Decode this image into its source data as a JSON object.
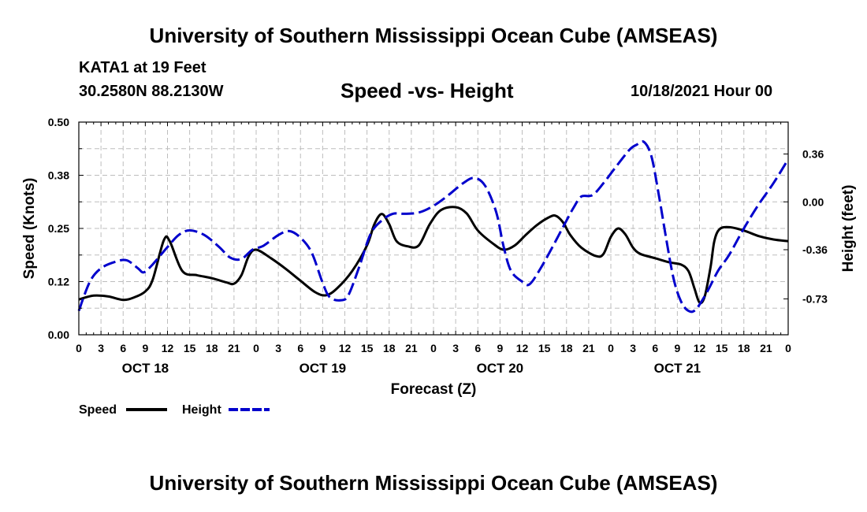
{
  "header": {
    "title": "University of Southern Mississippi Ocean Cube (AMSEAS)",
    "station": "KATA1 at 19 Feet",
    "coords": "30.2580N  88.2130W",
    "subtitle": "Speed -vs- Height",
    "datestamp": "10/18/2021 Hour 00"
  },
  "footer": {
    "title": "University of Southern Mississippi Ocean Cube (AMSEAS)"
  },
  "chart_data": {
    "type": "line",
    "title": "Speed -vs- Height",
    "xlabel": "Forecast (Z)",
    "ylabel_left": "Speed (Knots)",
    "ylabel_right": "Height (feet)",
    "x_range_hours": [
      0,
      96
    ],
    "x_ticks": [
      {
        "hour": 0,
        "label": "0"
      },
      {
        "hour": 3,
        "label": "3"
      },
      {
        "hour": 6,
        "label": "6"
      },
      {
        "hour": 9,
        "label": "9"
      },
      {
        "hour": 12,
        "label": "12"
      },
      {
        "hour": 15,
        "label": "15"
      },
      {
        "hour": 18,
        "label": "18"
      },
      {
        "hour": 21,
        "label": "21"
      },
      {
        "hour": 24,
        "label": "0"
      },
      {
        "hour": 27,
        "label": "3"
      },
      {
        "hour": 30,
        "label": "6"
      },
      {
        "hour": 33,
        "label": "9"
      },
      {
        "hour": 36,
        "label": "12"
      },
      {
        "hour": 39,
        "label": "15"
      },
      {
        "hour": 42,
        "label": "18"
      },
      {
        "hour": 45,
        "label": "21"
      },
      {
        "hour": 48,
        "label": "0"
      },
      {
        "hour": 51,
        "label": "3"
      },
      {
        "hour": 54,
        "label": "6"
      },
      {
        "hour": 57,
        "label": "9"
      },
      {
        "hour": 60,
        "label": "12"
      },
      {
        "hour": 63,
        "label": "15"
      },
      {
        "hour": 66,
        "label": "18"
      },
      {
        "hour": 69,
        "label": "21"
      },
      {
        "hour": 72,
        "label": "0"
      },
      {
        "hour": 75,
        "label": "3"
      },
      {
        "hour": 78,
        "label": "6"
      },
      {
        "hour": 81,
        "label": "9"
      },
      {
        "hour": 84,
        "label": "12"
      },
      {
        "hour": 87,
        "label": "15"
      },
      {
        "hour": 90,
        "label": "18"
      },
      {
        "hour": 93,
        "label": "21"
      },
      {
        "hour": 96,
        "label": "0"
      }
    ],
    "day_labels": [
      {
        "hour": 9,
        "label": "OCT 18"
      },
      {
        "hour": 33,
        "label": "OCT 19"
      },
      {
        "hour": 57,
        "label": "OCT 20"
      },
      {
        "hour": 81,
        "label": "OCT 21"
      }
    ],
    "left_axis": {
      "range": [
        0,
        0.5
      ],
      "ticks": [
        {
          "value": 0,
          "label": "0.00"
        },
        {
          "value": 0.125,
          "label": "0.12"
        },
        {
          "value": 0.25,
          "label": "0.25"
        },
        {
          "value": 0.375,
          "label": "0.38"
        },
        {
          "value": 0.5,
          "label": "0.50"
        }
      ]
    },
    "right_axis": {
      "range": [
        -1.0,
        0.6
      ],
      "ticks": [
        {
          "value": -0.73,
          "label": "-0.73"
        },
        {
          "value": -0.36,
          "label": "-0.36"
        },
        {
          "value": 0.0,
          "label": "0.00"
        },
        {
          "value": 0.36,
          "label": "0.36"
        }
      ]
    },
    "series": [
      {
        "name": "Speed",
        "axis": "left",
        "color": "#000000",
        "style": "solid",
        "points": [
          [
            0,
            0.083
          ],
          [
            2,
            0.092
          ],
          [
            4,
            0.09
          ],
          [
            6,
            0.082
          ],
          [
            7.5,
            0.088
          ],
          [
            9,
            0.102
          ],
          [
            10,
            0.13
          ],
          [
            11.5,
            0.222
          ],
          [
            12.3,
            0.22
          ],
          [
            14,
            0.15
          ],
          [
            16,
            0.14
          ],
          [
            18,
            0.133
          ],
          [
            20,
            0.123
          ],
          [
            21,
            0.12
          ],
          [
            22,
            0.14
          ],
          [
            23,
            0.185
          ],
          [
            24,
            0.2
          ],
          [
            26,
            0.18
          ],
          [
            28,
            0.155
          ],
          [
            30,
            0.127
          ],
          [
            32,
            0.1
          ],
          [
            33.5,
            0.093
          ],
          [
            35,
            0.11
          ],
          [
            37,
            0.15
          ],
          [
            39,
            0.21
          ],
          [
            40,
            0.26
          ],
          [
            41,
            0.284
          ],
          [
            42,
            0.26
          ],
          [
            43,
            0.22
          ],
          [
            44.5,
            0.208
          ],
          [
            46,
            0.21
          ],
          [
            47.5,
            0.26
          ],
          [
            49,
            0.293
          ],
          [
            51,
            0.3
          ],
          [
            52.5,
            0.285
          ],
          [
            54,
            0.245
          ],
          [
            56,
            0.215
          ],
          [
            57.5,
            0.2
          ],
          [
            59,
            0.21
          ],
          [
            60.5,
            0.235
          ],
          [
            62,
            0.258
          ],
          [
            63.5,
            0.275
          ],
          [
            64.5,
            0.28
          ],
          [
            65.5,
            0.265
          ],
          [
            66.5,
            0.235
          ],
          [
            68,
            0.205
          ],
          [
            70,
            0.185
          ],
          [
            71,
            0.19
          ],
          [
            72,
            0.23
          ],
          [
            73,
            0.25
          ],
          [
            74,
            0.235
          ],
          [
            75,
            0.205
          ],
          [
            76,
            0.19
          ],
          [
            78,
            0.18
          ],
          [
            80,
            0.17
          ],
          [
            81.5,
            0.165
          ],
          [
            82.5,
            0.15
          ],
          [
            83.3,
            0.11
          ],
          [
            84,
            0.076
          ],
          [
            84.7,
            0.09
          ],
          [
            85.5,
            0.16
          ],
          [
            86,
            0.22
          ],
          [
            86.7,
            0.248
          ],
          [
            88,
            0.253
          ],
          [
            90,
            0.245
          ],
          [
            92,
            0.232
          ],
          [
            94,
            0.224
          ],
          [
            96,
            0.22
          ]
        ]
      },
      {
        "name": "Height",
        "axis": "right",
        "color": "#0000cc",
        "style": "dashed",
        "points": [
          [
            0,
            -0.82
          ],
          [
            1.5,
            -0.6
          ],
          [
            3,
            -0.5
          ],
          [
            5,
            -0.45
          ],
          [
            6.5,
            -0.44
          ],
          [
            8,
            -0.5
          ],
          [
            8.8,
            -0.53
          ],
          [
            10,
            -0.47
          ],
          [
            12,
            -0.34
          ],
          [
            13.5,
            -0.25
          ],
          [
            15,
            -0.215
          ],
          [
            17,
            -0.25
          ],
          [
            19,
            -0.34
          ],
          [
            20.5,
            -0.42
          ],
          [
            22,
            -0.43
          ],
          [
            23.5,
            -0.36
          ],
          [
            25,
            -0.33
          ],
          [
            27,
            -0.25
          ],
          [
            28.5,
            -0.22
          ],
          [
            30,
            -0.27
          ],
          [
            31.5,
            -0.38
          ],
          [
            33,
            -0.61
          ],
          [
            34,
            -0.72
          ],
          [
            35.5,
            -0.74
          ],
          [
            36.5,
            -0.7
          ],
          [
            38,
            -0.48
          ],
          [
            39.5,
            -0.24
          ],
          [
            41,
            -0.14
          ],
          [
            42.5,
            -0.09
          ],
          [
            44,
            -0.09
          ],
          [
            46,
            -0.08
          ],
          [
            48,
            -0.03
          ],
          [
            50,
            0.05
          ],
          [
            52,
            0.14
          ],
          [
            53.5,
            0.18
          ],
          [
            55,
            0.12
          ],
          [
            56.5,
            -0.08
          ],
          [
            57.5,
            -0.34
          ],
          [
            58.5,
            -0.52
          ],
          [
            60,
            -0.6
          ],
          [
            61,
            -0.62
          ],
          [
            62.5,
            -0.5
          ],
          [
            64,
            -0.35
          ],
          [
            66,
            -0.14
          ],
          [
            67,
            -0.04
          ],
          [
            68,
            0.04
          ],
          [
            69.5,
            0.05
          ],
          [
            71,
            0.14
          ],
          [
            72.5,
            0.25
          ],
          [
            74.5,
            0.39
          ],
          [
            75.5,
            0.43
          ],
          [
            76.5,
            0.45
          ],
          [
            77.5,
            0.34
          ],
          [
            78.5,
            0.05
          ],
          [
            79.5,
            -0.28
          ],
          [
            80.5,
            -0.58
          ],
          [
            81.5,
            -0.75
          ],
          [
            82.5,
            -0.82
          ],
          [
            83.5,
            -0.81
          ],
          [
            85,
            -0.68
          ],
          [
            86.5,
            -0.52
          ],
          [
            88,
            -0.4
          ],
          [
            90,
            -0.2
          ],
          [
            92,
            -0.02
          ],
          [
            94,
            0.14
          ],
          [
            96,
            0.32
          ]
        ]
      }
    ],
    "legend": [
      {
        "label": "Speed",
        "color": "#000000",
        "style": "solid"
      },
      {
        "label": "Height",
        "color": "#0000cc",
        "style": "dashed"
      }
    ],
    "grid": true
  }
}
